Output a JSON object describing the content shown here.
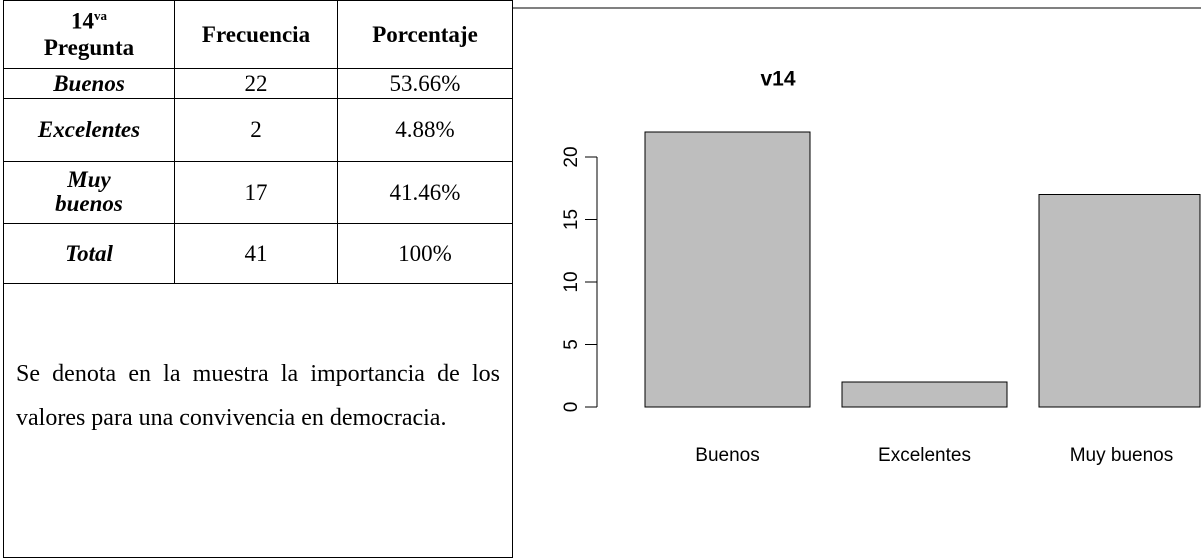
{
  "table": {
    "header": [
      {
        "number": "14",
        "suffix": "va",
        "word": "Pregunta"
      },
      "Frecuencia",
      "Porcentaje"
    ],
    "rows": [
      [
        "Buenos",
        "22",
        "53.66%"
      ],
      [
        "Excelentes",
        "2",
        "4.88%"
      ],
      [
        "Muy buenos",
        "17",
        "41.46%"
      ],
      [
        "Total",
        "41",
        "100%"
      ]
    ]
  },
  "paragraph": "Se denota en la muestra la importancia de los valores para una convivencia en democracia.",
  "chart_data": {
    "type": "bar",
    "title": "v14",
    "categories": [
      "Buenos",
      "Excelentes",
      "Muy buenos"
    ],
    "values": [
      22,
      2,
      17
    ],
    "color": "#bebebe",
    "ylim": [
      0,
      22
    ],
    "yticks": [
      0,
      5,
      10,
      15,
      20
    ],
    "grid": false
  }
}
